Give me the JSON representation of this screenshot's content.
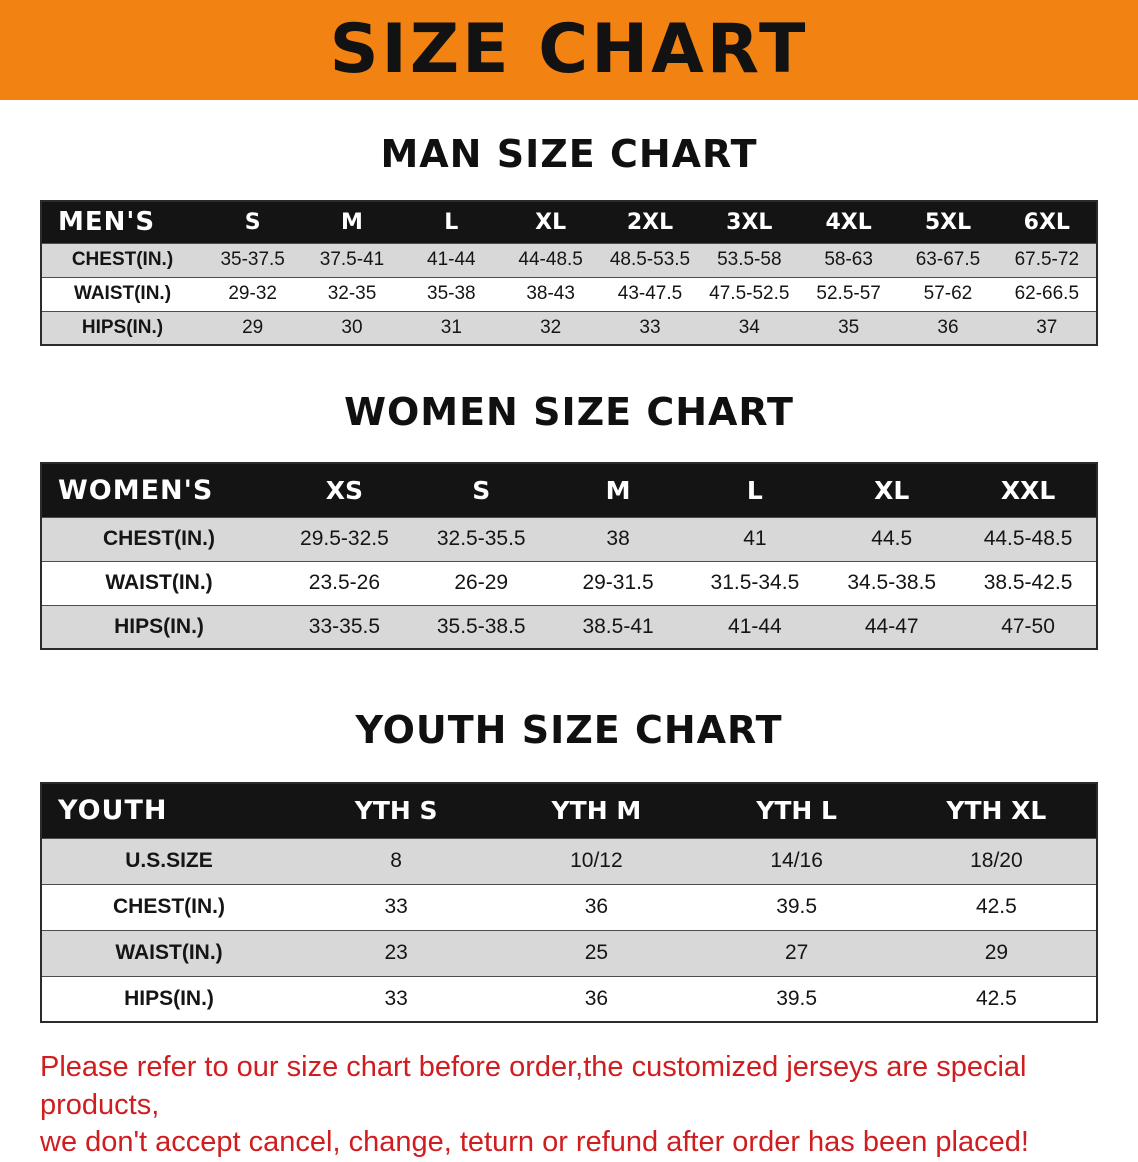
{
  "banner": {
    "title": "SIZE CHART"
  },
  "sections": [
    {
      "heading": "MAN SIZE CHART",
      "table": {
        "header": [
          "MEN'S",
          "S",
          "M",
          "L",
          "XL",
          "2XL",
          "3XL",
          "4XL",
          "5XL",
          "6XL"
        ],
        "rows": [
          {
            "label": "CHEST(IN.)",
            "values": [
              "35-37.5",
              "37.5-41",
              "41-44",
              "44-48.5",
              "48.5-53.5",
              "53.5-58",
              "58-63",
              "63-67.5",
              "67.5-72"
            ]
          },
          {
            "label": "WAIST(IN.)",
            "values": [
              "29-32",
              "32-35",
              "35-38",
              "38-43",
              "43-47.5",
              "47.5-52.5",
              "52.5-57",
              "57-62",
              "62-66.5"
            ]
          },
          {
            "label": "HIPS(IN.)",
            "values": [
              "29",
              "30",
              "31",
              "32",
              "33",
              "34",
              "35",
              "36",
              "37"
            ]
          }
        ]
      }
    },
    {
      "heading": "WOMEN SIZE CHART",
      "table": {
        "header": [
          "WOMEN'S",
          "XS",
          "S",
          "M",
          "L",
          "XL",
          "XXL"
        ],
        "rows": [
          {
            "label": "CHEST(IN.)",
            "values": [
              "29.5-32.5",
              "32.5-35.5",
              "38",
              "41",
              "44.5",
              "44.5-48.5"
            ]
          },
          {
            "label": "WAIST(IN.)",
            "values": [
              "23.5-26",
              "26-29",
              "29-31.5",
              "31.5-34.5",
              "34.5-38.5",
              "38.5-42.5"
            ]
          },
          {
            "label": "HIPS(IN.)",
            "values": [
              "33-35.5",
              "35.5-38.5",
              "38.5-41",
              "41-44",
              "44-47",
              "47-50"
            ]
          }
        ]
      }
    },
    {
      "heading": "YOUTH SIZE CHART",
      "table": {
        "header": [
          "YOUTH",
          "YTH S",
          "YTH M",
          "YTH L",
          "YTH XL"
        ],
        "rows": [
          {
            "label": "U.S.SIZE",
            "values": [
              "8",
              "10/12",
              "14/16",
              "18/20"
            ]
          },
          {
            "label": "CHEST(IN.)",
            "values": [
              "33",
              "36",
              "39.5",
              "42.5"
            ]
          },
          {
            "label": "WAIST(IN.)",
            "values": [
              "23",
              "25",
              "27",
              "29"
            ]
          },
          {
            "label": "HIPS(IN.)",
            "values": [
              "33",
              "36",
              "39.5",
              "42.5"
            ]
          }
        ]
      }
    }
  ],
  "footer": {
    "line1": "Please refer to our size chart before order,the customized jerseys are special products,",
    "line2": "we don't accept cancel, change, teturn or refund after order has been placed!"
  },
  "colors": {
    "banner_orange": "#f28211",
    "table_header_black": "#141414",
    "row_stripe_gray": "#d8d8d8",
    "notice_red": "#cf1d20"
  }
}
